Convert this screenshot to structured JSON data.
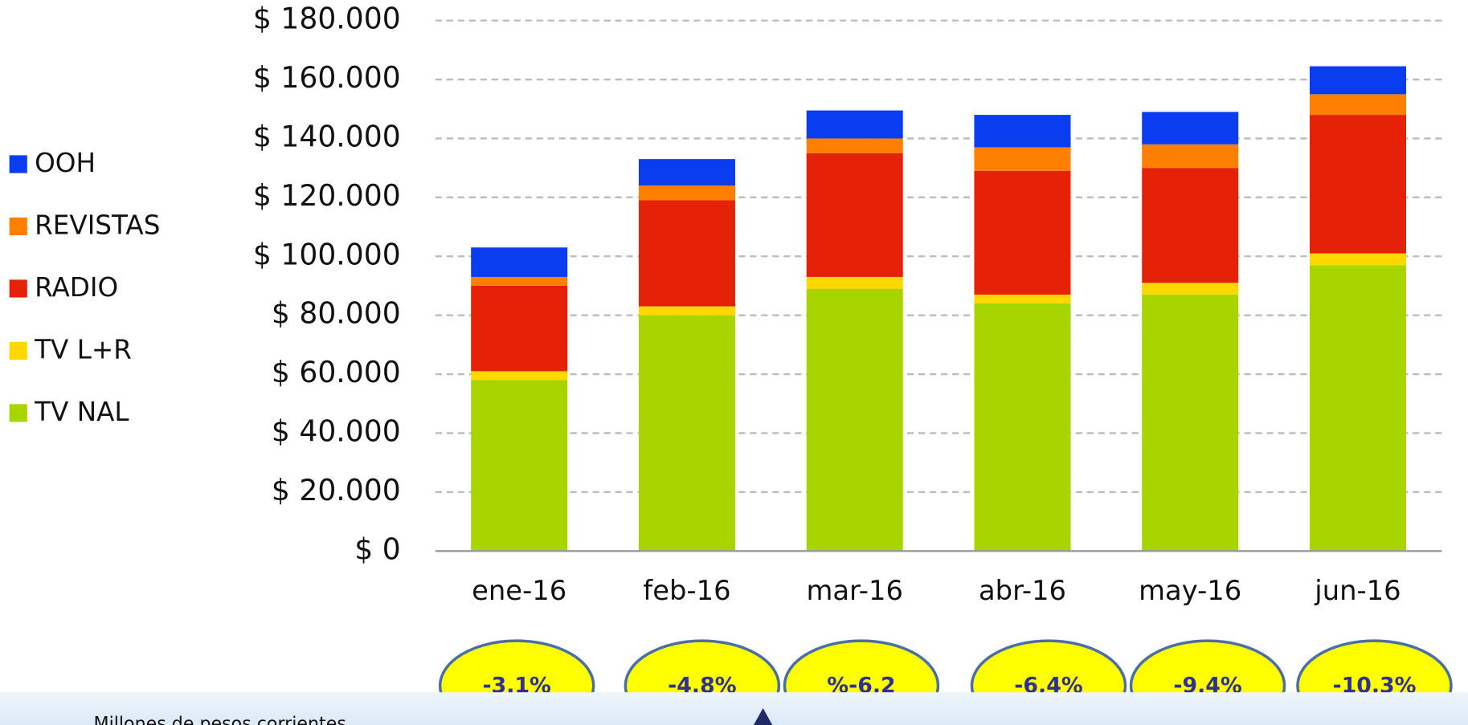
{
  "chart_data": {
    "type": "bar",
    "stacked": true,
    "categories": [
      "ene-16",
      "feb-16",
      "mar-16",
      "abr-16",
      "may-16",
      "jun-16"
    ],
    "series": [
      {
        "name": "TV NAL",
        "color": "#a8d400",
        "values": [
          58000,
          80000,
          89000,
          84000,
          87000,
          97000
        ]
      },
      {
        "name": "TV L+R",
        "color": "#ffd800",
        "values": [
          3000,
          3000,
          4000,
          3000,
          4000,
          4000
        ]
      },
      {
        "name": "RADIO",
        "color": "#e52207",
        "values": [
          29000,
          36000,
          42000,
          42000,
          39000,
          47000
        ]
      },
      {
        "name": "REVISTAS",
        "color": "#ff7f00",
        "values": [
          3000,
          5000,
          5000,
          8000,
          8000,
          7000
        ]
      },
      {
        "name": "OOH",
        "color": "#0a3cf0",
        "values": [
          10000,
          9000,
          9500,
          11000,
          11000,
          9500
        ]
      }
    ],
    "ylim": [
      0,
      180000
    ],
    "yticks": [
      {
        "value": 0,
        "label": "$ 0"
      },
      {
        "value": 20000,
        "label": "$ 20.000"
      },
      {
        "value": 40000,
        "label": "$ 40.000"
      },
      {
        "value": 60000,
        "label": "$ 60.000"
      },
      {
        "value": 80000,
        "label": "$ 80.000"
      },
      {
        "value": 100000,
        "label": "$ 100.000"
      },
      {
        "value": 120000,
        "label": "$ 120.000"
      },
      {
        "value": 140000,
        "label": "$ 140.000"
      },
      {
        "value": 160000,
        "label": "$ 160.000"
      },
      {
        "value": 180000,
        "label": "$ 180.000"
      }
    ],
    "grid": true,
    "legend": "left",
    "annotations": [
      "-3,1%",
      "-4,8%",
      "%-6,2",
      "-6,4%",
      "-9,4%",
      "-10,3%"
    ],
    "footnote": "Millones de pesos corrientes"
  }
}
